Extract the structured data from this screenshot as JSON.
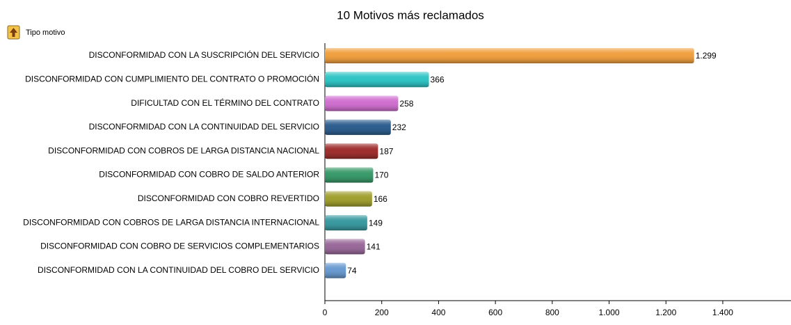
{
  "chart_data": {
    "type": "hbar",
    "title": "10 Motivos más reclamados",
    "legend_label": "Tipo motivo",
    "categories": [
      "DISCONFORMIDAD CON LA SUSCRIPCIÓN DEL SERVICIO",
      "DISCONFORMIDAD CON CUMPLIMIENTO DEL CONTRATO O PROMOCIÓN",
      "DIFICULTAD CON EL TÉRMINO DEL CONTRATO",
      "DISCONFORMIDAD CON LA CONTINUIDAD DEL SERVICIO",
      "DISCONFORMIDAD CON COBROS DE LARGA DISTANCIA NACIONAL",
      "DISCONFORMIDAD CON COBRO DE SALDO ANTERIOR",
      "DISCONFORMIDAD CON COBRO REVERTIDO",
      "DISCONFORMIDAD CON COBROS DE LARGA DISTANCIA INTERNACIONAL",
      "DISCONFORMIDAD CON COBRO DE SERVICIOS COMPLEMENTARIOS",
      "DISCONFORMIDAD CON LA CONTINUIDAD DEL COBRO DEL SERVICIO"
    ],
    "values": [
      1299,
      366,
      258,
      232,
      187,
      170,
      166,
      149,
      141,
      74
    ],
    "value_labels": [
      "1.299",
      "366",
      "258",
      "232",
      "187",
      "170",
      "166",
      "149",
      "141",
      "74"
    ],
    "colors": [
      "#f0a040",
      "#30c4c4",
      "#d070d0",
      "#2f5f8f",
      "#a03030",
      "#3a9a6a",
      "#a0a030",
      "#3a9aa0",
      "#9a6a9a",
      "#6a9ad0"
    ],
    "xlim": [
      0,
      1640
    ],
    "xticks": [
      0,
      200,
      400,
      600,
      800,
      {
        "value": 1000,
        "label": "1.000"
      },
      {
        "value": 1200,
        "label": "1.200"
      },
      {
        "value": 1400,
        "label": "1.400"
      }
    ]
  }
}
